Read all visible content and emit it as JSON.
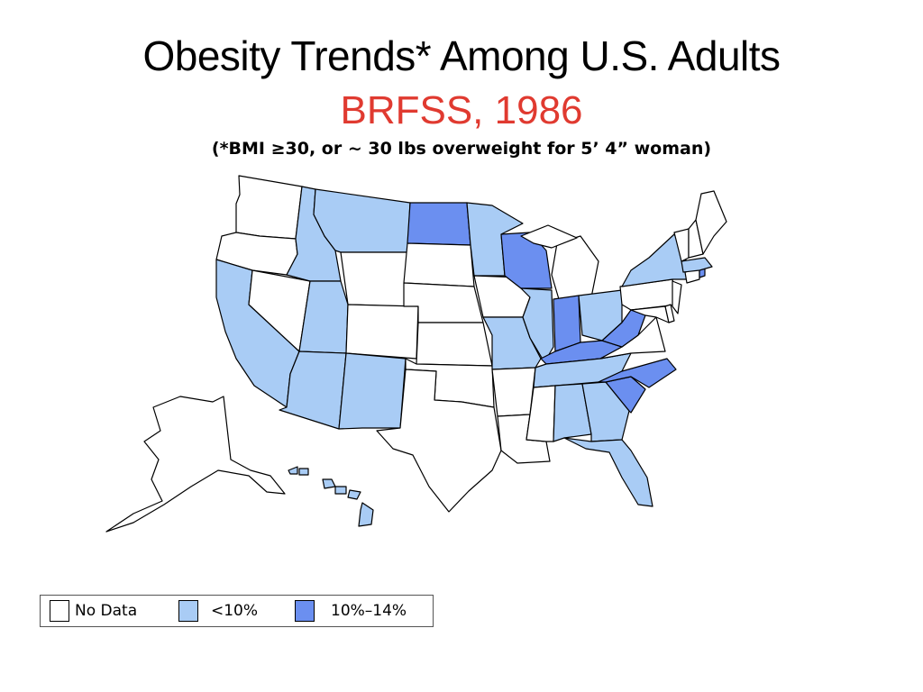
{
  "header": {
    "title": "Obesity Trends* Among U.S. Adults",
    "subtitle": "BRFSS, 1986",
    "subtitle_color": "#e03a30",
    "note": "(*BMI ≥30, or ~ 30 lbs overweight for 5’ 4” woman)"
  },
  "legend": {
    "items": [
      {
        "label": "No Data",
        "color": "#ffffff"
      },
      {
        "label": "<10%",
        "color": "#a9ccf5"
      },
      {
        "label": "10%–14%",
        "color": "#6b8ff0"
      }
    ]
  },
  "map": {
    "category_colors": {
      "none": "#ffffff",
      "low": "#a9ccf5",
      "mid": "#6b8ff0"
    },
    "states": {
      "Washington": "none",
      "Oregon": "none",
      "California": "low",
      "Nevada": "none",
      "Idaho": "low",
      "Montana": "low",
      "Wyoming": "none",
      "Utah": "low",
      "Arizona": "low",
      "Colorado": "none",
      "New Mexico": "low",
      "North Dakota": "mid",
      "South Dakota": "none",
      "Nebraska": "none",
      "Kansas": "none",
      "Oklahoma": "none",
      "Texas": "none",
      "Minnesota": "low",
      "Iowa": "none",
      "Missouri": "low",
      "Arkansas": "none",
      "Louisiana": "none",
      "Wisconsin": "mid",
      "Illinois": "low",
      "Michigan": "none",
      "Indiana": "mid",
      "Ohio": "low",
      "Kentucky": "mid",
      "Tennessee": "low",
      "Mississippi": "none",
      "Alabama": "low",
      "Georgia": "low",
      "Florida": "low",
      "South Carolina": "mid",
      "North Carolina": "mid",
      "Virginia": "none",
      "West Virginia": "mid",
      "Maryland": "none",
      "Delaware": "none",
      "Pennsylvania": "none",
      "New Jersey": "none",
      "New York": "low",
      "Connecticut": "none",
      "Rhode Island": "mid",
      "Massachusetts": "low",
      "Vermont": "none",
      "New Hampshire": "none",
      "Maine": "none",
      "Alaska": "none",
      "Hawaii": "low"
    }
  }
}
